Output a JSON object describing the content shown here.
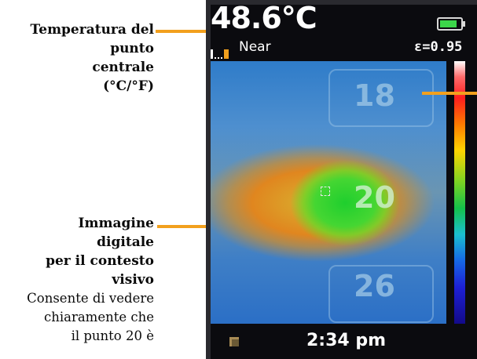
{
  "callouts": {
    "center_temp": {
      "line1": "Temperatura del",
      "line2": "punto",
      "line3": "centrale",
      "line4": "(°C/°F)"
    },
    "digital_image": {
      "line1": "Immagine",
      "line2": "digitale",
      "line3": "per il contesto",
      "line4": "visivo",
      "desc1": "Consente di vedere",
      "desc2": "chiaramente che",
      "desc3": "il punto 20 è"
    }
  },
  "device": {
    "center_temperature": "48.6°C",
    "focus_mode": "Near",
    "emissivity": "ε=0.95",
    "time": "2:34 pm",
    "battery_level": 0.85,
    "tags": [
      "18",
      "20",
      "26"
    ]
  },
  "colors": {
    "leader": "#f2a01d",
    "battery": "#3cd64a"
  }
}
